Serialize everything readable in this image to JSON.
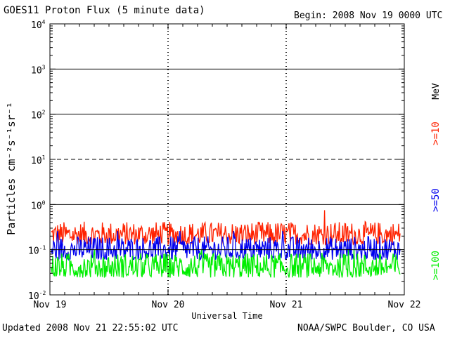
{
  "header": {
    "title": "GOES11 Proton Flux (5 minute data)",
    "begin": "Begin: 2008 Nov 19 0000 UTC"
  },
  "footer": {
    "updated": "Updated 2008 Nov 21 22:55:02 UTC",
    "source": "NOAA/SWPC Boulder, CO USA"
  },
  "chart_data": {
    "type": "line",
    "title": "GOES11 Proton Flux (5 minute data)",
    "xlabel": "Universal Time",
    "ylabel": "Particles cm⁻²s⁻¹sr⁻¹",
    "yscale": "log",
    "ylim": [
      0.01,
      10000
    ],
    "xlim": [
      "2008-11-19",
      "2008-11-22"
    ],
    "x_ticks": [
      "Nov 19",
      "Nov 20",
      "Nov 21",
      "Nov 22"
    ],
    "y_ticks": [
      {
        "base": "10",
        "exp": "-2"
      },
      {
        "base": "10",
        "exp": "-1"
      },
      {
        "base": "10",
        "exp": "0"
      },
      {
        "base": "10",
        "exp": "1"
      },
      {
        "base": "10",
        "exp": "2"
      },
      {
        "base": "10",
        "exp": "3"
      },
      {
        "base": "10",
        "exp": "4"
      }
    ],
    "unit_label": "MeV",
    "grid": true,
    "series": [
      {
        "name": ">=10",
        "color": "#ff2200",
        "baseline": 0.21,
        "noise_low": 0.13,
        "noise_high": 0.42,
        "peak": 0.75
      },
      {
        "name": ">=50",
        "color": "#0000ee",
        "baseline": 0.105,
        "noise_low": 0.06,
        "noise_high": 0.2,
        "peak": 0.26
      },
      {
        "name": ">=100",
        "color": "#00ee00",
        "baseline": 0.045,
        "noise_low": 0.024,
        "noise_high": 0.085,
        "peak": 0.1
      }
    ]
  }
}
